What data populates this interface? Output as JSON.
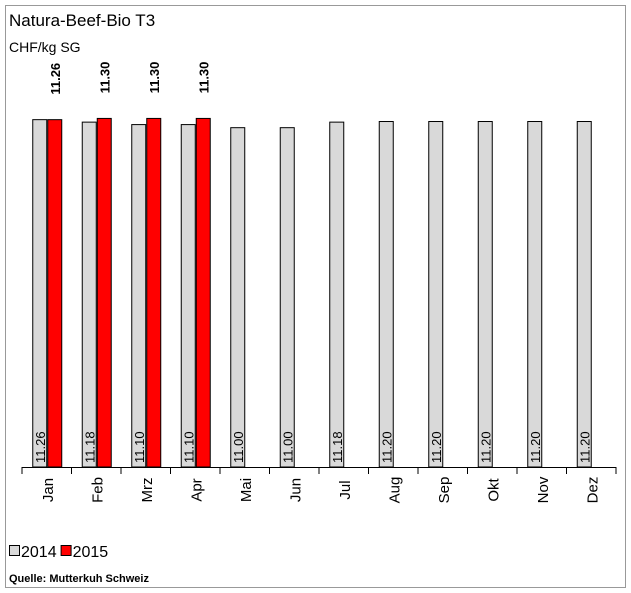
{
  "chart_data": {
    "type": "bar",
    "title": "Natura-Beef-Bio T3",
    "subtitle": "CHF/kg SG",
    "categories": [
      "Jan",
      "Feb",
      "Mrz",
      "Apr",
      "Mai",
      "Jun",
      "Jul",
      "Aug",
      "Sep",
      "Okt",
      "Nov",
      "Dez"
    ],
    "series": [
      {
        "name": "2014",
        "color": "#d9d9d9",
        "values": [
          11.26,
          11.18,
          11.1,
          11.1,
          11.0,
          11.0,
          11.18,
          11.2,
          11.2,
          11.2,
          11.2,
          11.2
        ],
        "value_labels": [
          "11.26",
          "11.18",
          "11.10",
          "11.10",
          "11.00",
          "11.00",
          "11.18",
          "11.20",
          "11.20",
          "11.20",
          "11.20",
          "11.20"
        ]
      },
      {
        "name": "2015",
        "color": "#ff0000",
        "values": [
          11.26,
          11.3,
          11.3,
          11.3,
          null,
          null,
          null,
          null,
          null,
          null,
          null,
          null
        ],
        "value_labels": [
          "11.26",
          "11.30",
          "11.30",
          "11.30",
          null,
          null,
          null,
          null,
          null,
          null,
          null,
          null
        ]
      }
    ],
    "ylim": [
      0,
      11.8
    ],
    "legend": "bottom-left",
    "source": "Quelle: Mutterkuh Schweiz"
  }
}
